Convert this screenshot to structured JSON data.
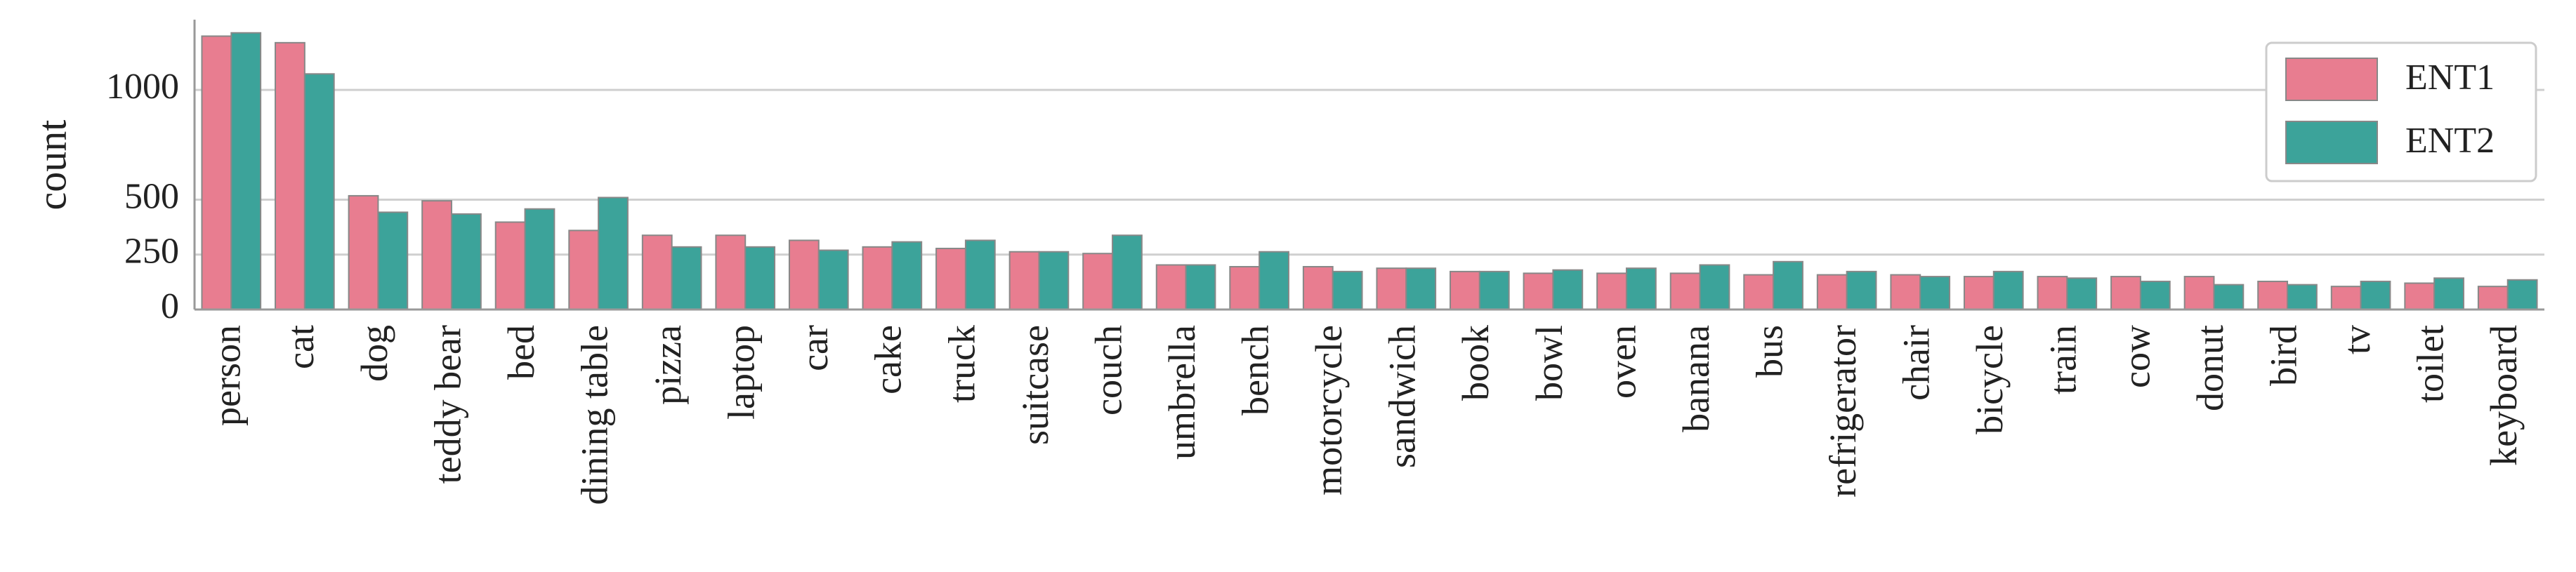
{
  "chart_data": {
    "type": "bar",
    "y_label": "count",
    "categories": [
      "person",
      "cat",
      "dog",
      "teddy bear",
      "bed",
      "dining table",
      "pizza",
      "laptop",
      "car",
      "cake",
      "truck",
      "suitcase",
      "couch",
      "umbrella",
      "bench",
      "motorcycle",
      "sandwich",
      "book",
      "bowl",
      "oven",
      "banana",
      "bus",
      "refrigerator",
      "chair",
      "bicycle",
      "train",
      "cow",
      "donut",
      "bird",
      "tv",
      "toilet",
      "keyboard"
    ],
    "series": [
      {
        "name": "ENT1",
        "color": "#e87d90",
        "values": [
          1245,
          1215,
          518,
          495,
          398,
          360,
          338,
          338,
          315,
          285,
          278,
          263,
          255,
          203,
          195,
          195,
          188,
          173,
          165,
          165,
          165,
          158,
          158,
          158,
          150,
          150,
          150,
          150,
          128,
          105,
          120,
          105
        ]
      },
      {
        "name": "ENT2",
        "color": "#3ca39a",
        "values": [
          1260,
          1073,
          443,
          435,
          458,
          510,
          285,
          285,
          270,
          308,
          315,
          263,
          338,
          203,
          263,
          173,
          188,
          173,
          180,
          188,
          203,
          218,
          173,
          150,
          173,
          143,
          128,
          113,
          113,
          128,
          143,
          135
        ]
      }
    ],
    "ylim": [
      0,
      1320
    ],
    "yticks": [
      0,
      250,
      500,
      1000
    ],
    "grid": true,
    "legend": "upper right"
  }
}
